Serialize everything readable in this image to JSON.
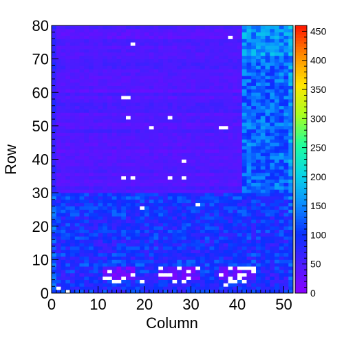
{
  "chart_data": {
    "type": "heatmap",
    "title": "",
    "xlabel": "Column",
    "ylabel": "Row",
    "xlim": [
      0,
      52
    ],
    "ylim": [
      0,
      80
    ],
    "x_ticks": [
      "0",
      "10",
      "20",
      "30",
      "40",
      "50"
    ],
    "y_ticks": [
      "0",
      "10",
      "20",
      "30",
      "40",
      "50",
      "60",
      "70",
      "80"
    ],
    "colorbar": {
      "range": [
        0,
        460
      ],
      "ticks": [
        "0",
        "50",
        "100",
        "150",
        "200",
        "250",
        "300",
        "350",
        "400",
        "450"
      ],
      "palette": [
        "#ffffff",
        "#8a00ff",
        "#4a1cff",
        "#0a30ff",
        "#0a8cff",
        "#08d6e6",
        "#20ff9a",
        "#a8ff20",
        "#ffe600",
        "#ff8c00",
        "#ff1500"
      ]
    },
    "n_columns": 52,
    "n_rows": 80,
    "regions": [
      {
        "rows": [
          0,
          30
        ],
        "cols": [
          0,
          52
        ],
        "value": 95,
        "note": "lower band"
      },
      {
        "rows": [
          30,
          80
        ],
        "cols": [
          0,
          41
        ],
        "value": 45,
        "note": "upper-left band"
      },
      {
        "rows": [
          30,
          80
        ],
        "cols": [
          41,
          52
        ],
        "value": 130,
        "note": "upper-right band"
      },
      {
        "rows": [
          4,
          8
        ],
        "cols": [
          11,
          18
        ],
        "value": 20,
        "note": "low island 1"
      },
      {
        "rows": [
          4,
          8
        ],
        "cols": [
          23,
          32
        ],
        "value": 20,
        "note": "low island 2"
      },
      {
        "rows": [
          4,
          8
        ],
        "cols": [
          36,
          44
        ],
        "value": 20,
        "note": "low island 3"
      }
    ],
    "zero_cells": [
      [
        15,
        4
      ],
      [
        13,
        3
      ],
      [
        12,
        4
      ],
      [
        14,
        3
      ],
      [
        19,
        3
      ],
      [
        26,
        3
      ],
      [
        28,
        3
      ],
      [
        29,
        4
      ],
      [
        38,
        3
      ],
      [
        39,
        3
      ],
      [
        40,
        4
      ],
      [
        41,
        3
      ],
      [
        37,
        2
      ],
      [
        1,
        1
      ],
      [
        3,
        0
      ],
      [
        17,
        74
      ],
      [
        38,
        76
      ],
      [
        15,
        58
      ],
      [
        16,
        58
      ],
      [
        16,
        52
      ],
      [
        25,
        52
      ],
      [
        21,
        49
      ],
      [
        36,
        49
      ],
      [
        37,
        49
      ],
      [
        28,
        39
      ],
      [
        15,
        34
      ],
      [
        17,
        34
      ],
      [
        25,
        34
      ],
      [
        28,
        34
      ],
      [
        31,
        26
      ],
      [
        19,
        25
      ]
    ]
  }
}
